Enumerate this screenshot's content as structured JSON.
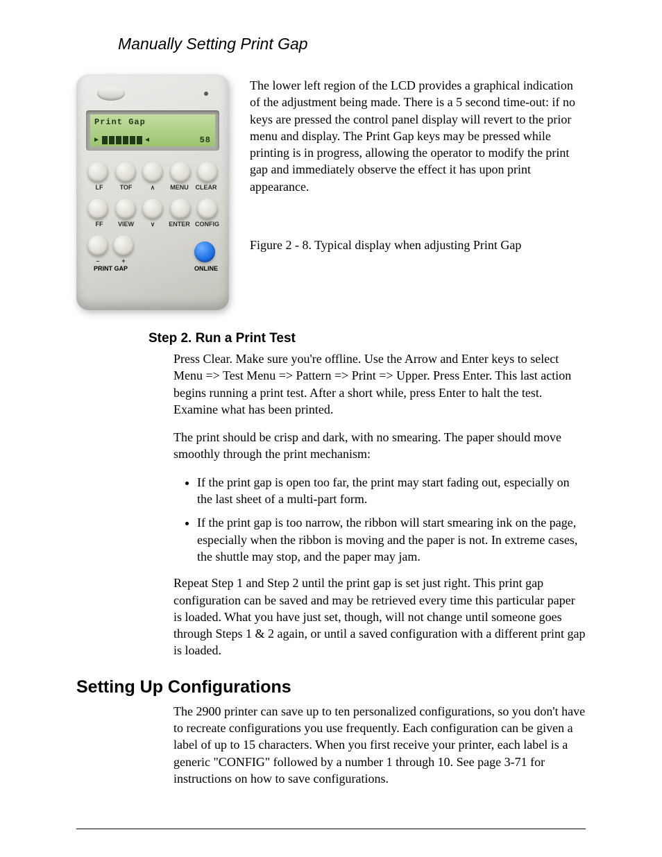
{
  "page": {
    "title": "Manually Setting Print Gap"
  },
  "panel": {
    "lcd": {
      "line1": "Print Gap",
      "value": "58",
      "bars_filled": 6,
      "bars_total": 6,
      "bg_color": "#a9cf7e",
      "text_color": "#1e3a18"
    },
    "row1_labels": [
      "LF",
      "TOF",
      "∧",
      "MENU",
      "CLEAR"
    ],
    "row2_labels": [
      "FF",
      "VIEW",
      "∨",
      "ENTER",
      "CONFIG"
    ],
    "print_gap": {
      "minus": "–",
      "plus": "+",
      "title": "PRINT GAP"
    },
    "online_label": "ONLINE",
    "body_color": "#dedcd4",
    "blue_key_color": "#1e6fe6"
  },
  "figure": {
    "para": "The lower left region of the LCD provides a graphical indication of the adjustment being made. There is a 5 second time-out: if no keys are pressed the control panel display will revert to the prior menu and display. The Print Gap keys may be pressed while printing is in progress, allowing the operator to modify the print gap and immediately observe the effect it has upon print appearance.",
    "caption": "Figure 2 - 8. Typical display when adjusting Print Gap"
  },
  "step2": {
    "heading": "Step 2. Run a Print Test",
    "p1": "Press Clear. Make sure you're offline. Use the Arrow and Enter keys to select Menu => Test Menu => Pattern => Print => Upper. Press Enter. This last action begins running a print test. After a short while, press Enter to halt the test. Examine what has been printed.",
    "p2": "The print should be crisp and dark, with no smearing.  The paper should move smoothly through the print mechanism:",
    "bullets": [
      "If the print gap is open too far, the print may start fading out, especially on the last sheet of a multi-part form.",
      "If the print gap is too narrow, the ribbon will start smearing ink on the page, especially when the ribbon is moving and the paper is not.  In extreme cases, the shuttle may stop, and the paper may jam."
    ],
    "p3": "Repeat Step 1 and Step 2 until the print gap is set just right. This print gap configuration can be saved and may be retrieved every time this particular paper is loaded. What you have just set, though, will not change until someone goes through Steps 1 & 2 again, or until a saved configuration with a different print gap is loaded."
  },
  "configs": {
    "heading": "Setting Up Configurations",
    "p1": "The 2900 printer can save up to ten personalized configurations, so you don't have to recreate configurations you use frequently. Each configuration can be given a label of up to 15 characters. When you first receive your printer, each label is a generic \"CONFIG\" followed by a number 1 through 10. See page 3-71 for instructions on how to save configurations."
  }
}
